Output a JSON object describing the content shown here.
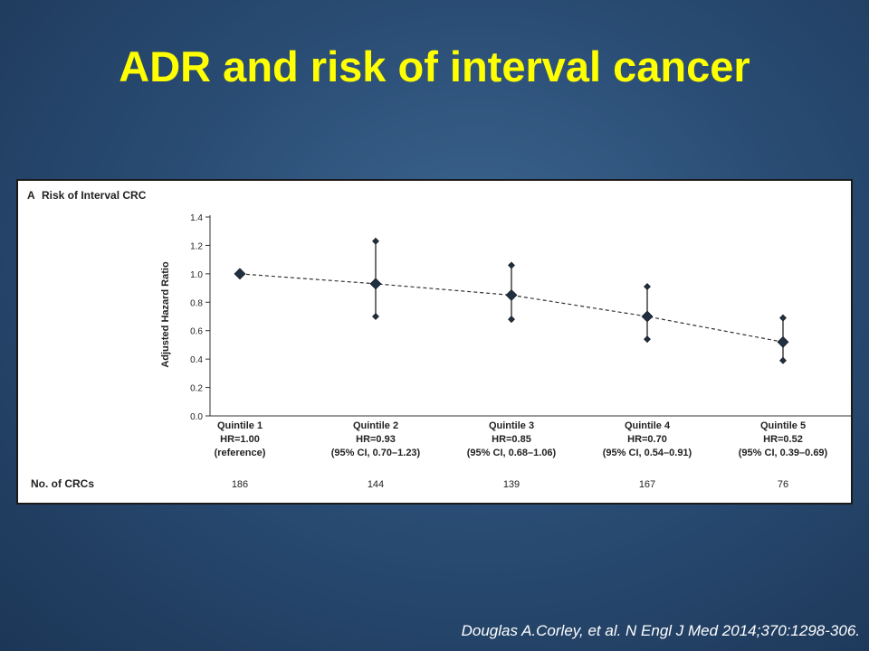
{
  "slide": {
    "title": "ADR and risk of interval cancer",
    "citation": "Douglas A.Corley, et al. N Engl J Med 2014;370:1298-306."
  },
  "colors": {
    "title": "#ffff00",
    "marker": "#1f2f44",
    "background": "#2a4d75"
  },
  "chart_data": {
    "type": "scatter",
    "panel_label": "A",
    "title": "Risk of Interval CRC",
    "ylabel": "Adjusted Hazard Ratio",
    "xlabel": "",
    "ylim": [
      0,
      1.4
    ],
    "yticks": [
      "0.0",
      "0.2",
      "0.4",
      "0.6",
      "0.8",
      "1.0",
      "1.2",
      "1.4"
    ],
    "grid": false,
    "trend_line": "dashed",
    "categories": [
      {
        "name": "Quintile 1",
        "hr_label": "HR=1.00",
        "ci_label": "(reference)",
        "hr": 1.0,
        "ci": null
      },
      {
        "name": "Quintile 2",
        "hr_label": "HR=0.93",
        "ci_label": "(95% CI, 0.70–1.23)",
        "hr": 0.93,
        "ci": [
          0.7,
          1.23
        ]
      },
      {
        "name": "Quintile 3",
        "hr_label": "HR=0.85",
        "ci_label": "(95% CI, 0.68–1.06)",
        "hr": 0.85,
        "ci": [
          0.68,
          1.06
        ]
      },
      {
        "name": "Quintile 4",
        "hr_label": "HR=0.70",
        "ci_label": "(95% CI, 0.54–0.91)",
        "hr": 0.7,
        "ci": [
          0.54,
          0.91
        ]
      },
      {
        "name": "Quintile 5",
        "hr_label": "HR=0.52",
        "ci_label": "(95% CI, 0.39–0.69)",
        "hr": 0.52,
        "ci": [
          0.39,
          0.69
        ]
      }
    ],
    "table": {
      "row_label": "No. of CRCs",
      "values": [
        "186",
        "144",
        "139",
        "167",
        "76"
      ]
    }
  }
}
